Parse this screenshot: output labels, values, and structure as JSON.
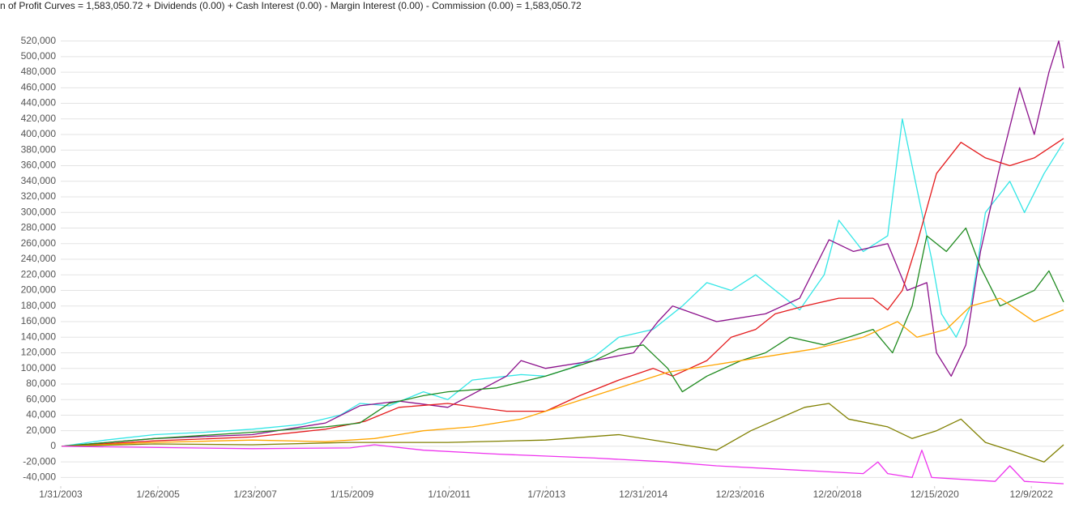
{
  "chart_data": {
    "type": "line",
    "title": "n of Profit Curves = 1,583,050.72 + Dividends (0.00) + Cash Interest (0.00) - Margin Interest (0.00) - Commission (0.00) = 1,583,050.72",
    "xlim": [
      2003.08,
      2023.6
    ],
    "xticks": [
      {
        "value": 2003.08,
        "label": "1/31/2003"
      },
      {
        "value": 2005.07,
        "label": "1/26/2005"
      },
      {
        "value": 2007.06,
        "label": "1/23/2007"
      },
      {
        "value": 2009.04,
        "label": "1/15/2009"
      },
      {
        "value": 2011.03,
        "label": "1/10/2011"
      },
      {
        "value": 2013.02,
        "label": "1/7/2013"
      },
      {
        "value": 2015.0,
        "label": "12/31/2014"
      },
      {
        "value": 2016.98,
        "label": "12/23/2016"
      },
      {
        "value": 2018.97,
        "label": "12/20/2018"
      },
      {
        "value": 2020.96,
        "label": "12/15/2020"
      },
      {
        "value": 2022.94,
        "label": "12/9/2022"
      }
    ],
    "ylim": [
      -51000,
      531000
    ],
    "yticks": [
      {
        "value": -40000,
        "label": "-40,000"
      },
      {
        "value": -20000,
        "label": "-20,000"
      },
      0,
      {
        "value": 20000,
        "label": "20,000"
      },
      {
        "value": 40000,
        "label": "40,000"
      },
      {
        "value": 60000,
        "label": "60,000"
      },
      {
        "value": 80000,
        "label": "80,000"
      },
      {
        "value": 100000,
        "label": "100,000"
      },
      {
        "value": 120000,
        "label": "120,000"
      },
      {
        "value": 140000,
        "label": "140,000"
      },
      {
        "value": 160000,
        "label": "160,000"
      },
      {
        "value": 180000,
        "label": "180,000"
      },
      {
        "value": 200000,
        "label": "200,000"
      },
      {
        "value": 220000,
        "label": "220,000"
      },
      {
        "value": 240000,
        "label": "240,000"
      },
      {
        "value": 260000,
        "label": "260,000"
      },
      {
        "value": 280000,
        "label": "280,000"
      },
      {
        "value": 300000,
        "label": "300,000"
      },
      {
        "value": 320000,
        "label": "320,000"
      },
      {
        "value": 340000,
        "label": "340,000"
      },
      {
        "value": 360000,
        "label": "360,000"
      },
      {
        "value": 380000,
        "label": "380,000"
      },
      {
        "value": 400000,
        "label": "400,000"
      },
      {
        "value": 420000,
        "label": "420,000"
      },
      {
        "value": 440000,
        "label": "440,000"
      },
      {
        "value": 460000,
        "label": "460,000"
      },
      {
        "value": 480000,
        "label": "480,000"
      },
      {
        "value": 500000,
        "label": "500,000"
      },
      {
        "value": 520000,
        "label": "520,000"
      }
    ],
    "grid": true,
    "series": [
      {
        "color": "#33e6e6",
        "x": [
          2003.1,
          2004,
          2005,
          2006,
          2007,
          2008,
          2008.8,
          2009.2,
          2009.8,
          2010.5,
          2011,
          2011.5,
          2012.5,
          2013,
          2013.5,
          2014,
          2014.5,
          2015.2,
          2015.8,
          2016.3,
          2016.8,
          2017.3,
          2017.8,
          2018.2,
          2018.7,
          2019,
          2019.5,
          2020,
          2020.3,
          2020.6,
          2020.9,
          2021.1,
          2021.4,
          2021.7,
          2022,
          2022.5,
          2022.8,
          2023.2,
          2023.6
        ],
        "values": [
          0,
          8000,
          15000,
          18000,
          22000,
          28000,
          40000,
          55000,
          52000,
          70000,
          60000,
          85000,
          92000,
          90000,
          100000,
          115000,
          140000,
          150000,
          180000,
          210000,
          200000,
          220000,
          195000,
          175000,
          220000,
          290000,
          250000,
          270000,
          420000,
          330000,
          240000,
          170000,
          140000,
          180000,
          300000,
          340000,
          300000,
          350000,
          390000
        ]
      },
      {
        "color": "#8b108b",
        "x": [
          2003.1,
          2005,
          2007,
          2008.5,
          2009.2,
          2010,
          2011,
          2012.2,
          2012.5,
          2013,
          2014,
          2014.8,
          2015.3,
          2015.6,
          2016.5,
          2017.5,
          2018.2,
          2018.8,
          2019.3,
          2020,
          2020.4,
          2020.8,
          2021,
          2021.3,
          2021.6,
          2021.9,
          2022.3,
          2022.7,
          2023,
          2023.3,
          2023.5,
          2023.6
        ],
        "values": [
          0,
          10000,
          15000,
          30000,
          52000,
          58000,
          50000,
          90000,
          110000,
          100000,
          110000,
          120000,
          160000,
          180000,
          160000,
          170000,
          190000,
          265000,
          250000,
          260000,
          200000,
          210000,
          120000,
          90000,
          130000,
          250000,
          360000,
          460000,
          400000,
          480000,
          520000,
          485000
        ]
      },
      {
        "color": "#e41a1c",
        "x": [
          2003.1,
          2005,
          2007,
          2008.5,
          2009.3,
          2010,
          2011,
          2012.2,
          2013,
          2013.7,
          2014.5,
          2015.2,
          2015.6,
          2016.3,
          2016.8,
          2017.3,
          2017.7,
          2018.3,
          2019,
          2019.7,
          2020,
          2020.3,
          2020.6,
          2021,
          2021.5,
          2022,
          2022.5,
          2023,
          2023.6
        ],
        "values": [
          0,
          7000,
          12000,
          22000,
          32000,
          50000,
          55000,
          45000,
          45000,
          65000,
          85000,
          100000,
          90000,
          110000,
          140000,
          150000,
          170000,
          180000,
          190000,
          190000,
          175000,
          200000,
          260000,
          350000,
          390000,
          370000,
          360000,
          370000,
          395000
        ]
      },
      {
        "color": "#1e8a1e",
        "x": [
          2003.1,
          2005,
          2007,
          2008.5,
          2009.2,
          2009.8,
          2010.5,
          2011,
          2012,
          2013,
          2014,
          2014.5,
          2015,
          2015.5,
          2015.8,
          2016.3,
          2017,
          2017.5,
          2018,
          2018.7,
          2019.2,
          2019.7,
          2020.1,
          2020.5,
          2020.8,
          2021.2,
          2021.6,
          2021.9,
          2022.3,
          2023,
          2023.3,
          2023.6
        ],
        "values": [
          0,
          10000,
          18000,
          25000,
          30000,
          55000,
          65000,
          70000,
          75000,
          90000,
          110000,
          125000,
          130000,
          100000,
          70000,
          90000,
          110000,
          120000,
          140000,
          130000,
          140000,
          150000,
          120000,
          180000,
          270000,
          250000,
          280000,
          230000,
          180000,
          200000,
          225000,
          185000
        ]
      },
      {
        "color": "#ffa500",
        "x": [
          2003.1,
          2005,
          2007,
          2008.5,
          2009.5,
          2010.5,
          2011.5,
          2012.5,
          2013.5,
          2014.5,
          2015.5,
          2016.5,
          2017.5,
          2018.5,
          2019.5,
          2020.2,
          2020.6,
          2021.2,
          2021.7,
          2022.3,
          2023,
          2023.6
        ],
        "values": [
          0,
          5000,
          8000,
          6000,
          10000,
          20000,
          25000,
          35000,
          55000,
          75000,
          95000,
          105000,
          115000,
          125000,
          140000,
          160000,
          140000,
          150000,
          180000,
          190000,
          160000,
          175000
        ]
      },
      {
        "color": "#808000",
        "x": [
          2003.1,
          2005,
          2007,
          2009,
          2011,
          2013,
          2014.5,
          2015.5,
          2016.5,
          2017.2,
          2018.3,
          2018.8,
          2019.2,
          2020,
          2020.5,
          2021,
          2021.5,
          2022,
          2022.5,
          2023.2,
          2023.6
        ],
        "values": [
          0,
          3000,
          2000,
          5000,
          5000,
          8000,
          15000,
          5000,
          -5000,
          20000,
          50000,
          55000,
          35000,
          25000,
          10000,
          20000,
          35000,
          5000,
          -5000,
          -20000,
          2000
        ]
      },
      {
        "color": "#ee33ee",
        "x": [
          2003.1,
          2007,
          2009,
          2009.5,
          2010.5,
          2012,
          2014,
          2015.5,
          2016.5,
          2018,
          2019.5,
          2019.8,
          2020,
          2020.5,
          2020.7,
          2020.9,
          2022.2,
          2022.5,
          2022.8,
          2023.6
        ],
        "values": [
          0,
          -3000,
          -2000,
          2000,
          -5000,
          -10000,
          -15000,
          -20000,
          -25000,
          -30000,
          -35000,
          -20000,
          -35000,
          -40000,
          -5000,
          -40000,
          -45000,
          -25000,
          -45000,
          -48000
        ]
      }
    ]
  }
}
